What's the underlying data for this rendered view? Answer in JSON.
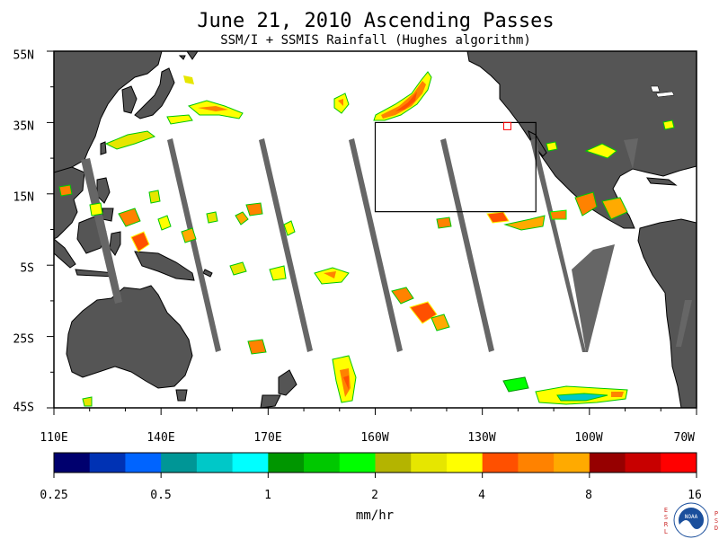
{
  "title": "June 21, 2010  Ascending Passes",
  "subtitle": "SSM/I + SSMIS Rainfall (Hughes algorithm)",
  "latitude_labels": [
    "55N",
    "35N",
    "15N",
    "5S",
    "25S",
    "45S"
  ],
  "longitude_labels": [
    "110E",
    "140E",
    "170E",
    "160W",
    "130W",
    "100W",
    "70W"
  ],
  "colorbar": {
    "colors": [
      "#00006e",
      "#0032b4",
      "#0064ff",
      "#009696",
      "#00c8c8",
      "#00ffff",
      "#009600",
      "#00c800",
      "#00ff00",
      "#b4b400",
      "#e6e600",
      "#ffff00",
      "#ff5000",
      "#ff8200",
      "#ffaa00",
      "#960000",
      "#c80000",
      "#ff0000"
    ],
    "labels": [
      "0.25",
      "0.5",
      "1",
      "2",
      "4",
      "8",
      "16"
    ],
    "units": "mm/hr"
  },
  "map": {
    "land_color": "#555555",
    "gap_color": "#666666",
    "ocean_color": "#ffffff",
    "lon_range": [
      110,
      290
    ],
    "lat_range": [
      -45,
      55
    ],
    "highlight_box": {
      "lon": [
        200,
        245
      ],
      "lat": [
        10,
        35
      ]
    },
    "highlight_point": {
      "lon": 237,
      "lat": 34
    }
  },
  "logo": {
    "left_letters": [
      "E",
      "S",
      "R",
      "L"
    ],
    "right_letters": [
      "P",
      "S",
      "D"
    ],
    "name": "NOAA"
  }
}
